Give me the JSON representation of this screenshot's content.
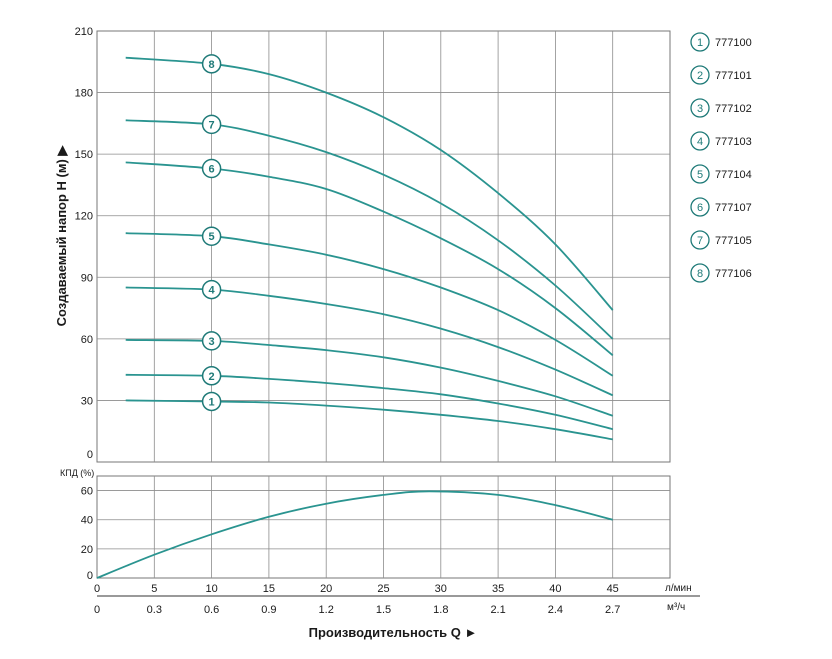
{
  "colors": {
    "curve": "#2a9490",
    "badge": "#1f7a78",
    "grid": "#8c8c8c",
    "frame": "#777777",
    "badge_fill": "#ffffff"
  },
  "labels": {
    "y_axis_title": "Создаваемый напор H (м) ▶",
    "x_axis_title": "Производительность Q ►",
    "eff_title": "КПД (%)",
    "unit_lpm": "л/мин",
    "unit_m3h": "м³/ч"
  },
  "chart_data": [
    {
      "type": "line",
      "id": "head",
      "ylabel": "Создаваемый напор H (м) ▶",
      "xlabel": "Производительность Q ►",
      "xlim": [
        0,
        50
      ],
      "ylim": [
        0,
        210
      ],
      "x_ticks": [
        "0",
        "5",
        "10",
        "15",
        "20",
        "25",
        "30",
        "35",
        "40",
        "45"
      ],
      "x_ticks_m3h": [
        "0",
        "0.3",
        "0.6",
        "0.9",
        "1.2",
        "1.5",
        "1.8",
        "2.1",
        "2.4",
        "2.7"
      ],
      "y_ticks": [
        "0",
        "30",
        "60",
        "90",
        "120",
        "150",
        "180",
        "210"
      ],
      "grid": true,
      "legend": "right",
      "x": [
        2.5,
        10,
        15,
        20,
        25,
        30,
        35,
        40,
        45
      ],
      "series": [
        {
          "name": "777100",
          "badge": "1",
          "values": [
            30,
            29.5,
            29,
            27.5,
            25.5,
            23,
            20,
            16,
            11
          ]
        },
        {
          "name": "777101",
          "badge": "2",
          "values": [
            42.5,
            42,
            40.5,
            38.5,
            36,
            33,
            28.5,
            23,
            16
          ]
        },
        {
          "name": "777102",
          "badge": "3",
          "values": [
            59.5,
            59,
            57,
            54.5,
            51,
            46,
            39.5,
            32,
            22.5
          ]
        },
        {
          "name": "777103",
          "badge": "4",
          "values": [
            85,
            84,
            81,
            77,
            72,
            65,
            56,
            45,
            32.5
          ]
        },
        {
          "name": "777104",
          "badge": "5",
          "values": [
            111.5,
            110,
            106,
            101,
            94,
            85,
            74,
            59.5,
            42
          ]
        },
        {
          "name": "777107",
          "badge": "6",
          "values": [
            146,
            143,
            139,
            133,
            122,
            109,
            94,
            75,
            52
          ]
        },
        {
          "name": "777105",
          "badge": "7",
          "values": [
            166.5,
            164.5,
            159,
            151,
            140,
            126,
            108,
            86,
            60
          ]
        },
        {
          "name": "777106",
          "badge": "8",
          "values": [
            197,
            194,
            189,
            180,
            168,
            152,
            131,
            106,
            74
          ]
        }
      ]
    },
    {
      "type": "line",
      "id": "efficiency",
      "ylabel": "КПД (%)",
      "xlim": [
        0,
        50
      ],
      "ylim": [
        0,
        70
      ],
      "y_ticks": [
        "0",
        "20",
        "40",
        "60"
      ],
      "grid": true,
      "x": [
        0,
        5,
        10,
        15,
        20,
        25,
        29,
        35,
        40,
        45
      ],
      "series": [
        {
          "values": [
            0,
            16,
            30,
            42,
            51,
            57,
            59.5,
            57,
            50,
            40
          ]
        }
      ]
    }
  ]
}
